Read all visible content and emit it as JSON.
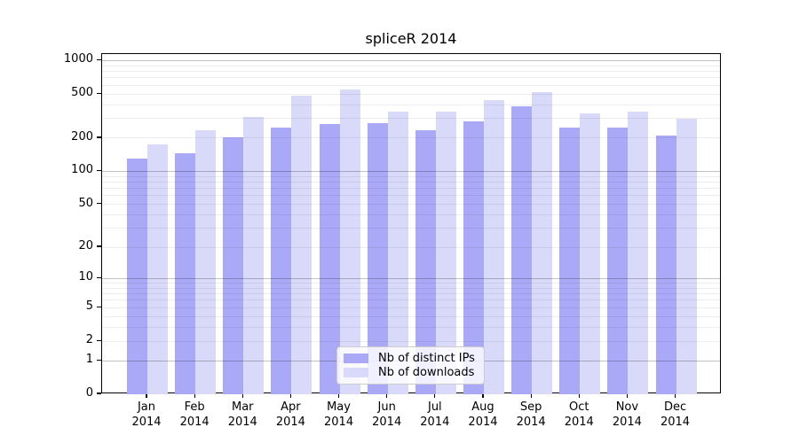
{
  "title": "spliceR 2014",
  "colors": {
    "ips_bar": "#a9a9f7",
    "downloads_bar": "#d9d9fa",
    "grid_major": "rgba(0,0,0,0.24)",
    "grid_minor": "rgba(0,0,0,0.07)",
    "axis": "#000000",
    "legend_border": "#cccccc"
  },
  "legend": {
    "items": [
      {
        "label": "Nb of distinct IPs",
        "series": "ips"
      },
      {
        "label": "Nb of downloads",
        "series": "downloads"
      }
    ]
  },
  "y_axis": {
    "tick_labels": [
      "0",
      "1",
      "2",
      "5",
      "10",
      "20",
      "50",
      "100",
      "200",
      "500",
      "1000"
    ],
    "tick_values": [
      0,
      1,
      2,
      5,
      10,
      20,
      50,
      100,
      200,
      500,
      1000
    ],
    "major_gridline_values": [
      1,
      10,
      100,
      1000
    ],
    "minor_gridline_values": [
      2,
      3,
      4,
      5,
      6,
      7,
      8,
      9,
      20,
      30,
      40,
      50,
      60,
      70,
      80,
      90,
      200,
      300,
      400,
      500,
      600,
      700,
      800,
      900
    ]
  },
  "x_axis": {
    "months": [
      "Jan",
      "Feb",
      "Mar",
      "Apr",
      "May",
      "Jun",
      "Jul",
      "Aug",
      "Sep",
      "Oct",
      "Nov",
      "Dec"
    ],
    "year": "2014"
  },
  "chart_data": {
    "type": "bar",
    "title": "spliceR 2014",
    "categories": [
      "Jan 2014",
      "Feb 2014",
      "Mar 2014",
      "Apr 2014",
      "May 2014",
      "Jun 2014",
      "Jul 2014",
      "Aug 2014",
      "Sep 2014",
      "Oct 2014",
      "Nov 2014",
      "Dec 2014"
    ],
    "series": [
      {
        "name": "Nb of distinct IPs",
        "color": "#a9a9f7",
        "values": [
          130,
          145,
          205,
          250,
          270,
          275,
          235,
          285,
          390,
          250,
          250,
          210
        ]
      },
      {
        "name": "Nb of downloads",
        "color": "#d9d9fa",
        "values": [
          175,
          235,
          310,
          480,
          550,
          350,
          345,
          445,
          525,
          335,
          350,
          300
        ]
      }
    ],
    "xlabel": "",
    "ylabel": "",
    "yscale": "log1p",
    "yticks": [
      0,
      1,
      2,
      5,
      10,
      20,
      50,
      100,
      200,
      500,
      1000
    ],
    "ylim": [
      0,
      1140
    ],
    "grid": "both",
    "legend_position": "lower center"
  }
}
